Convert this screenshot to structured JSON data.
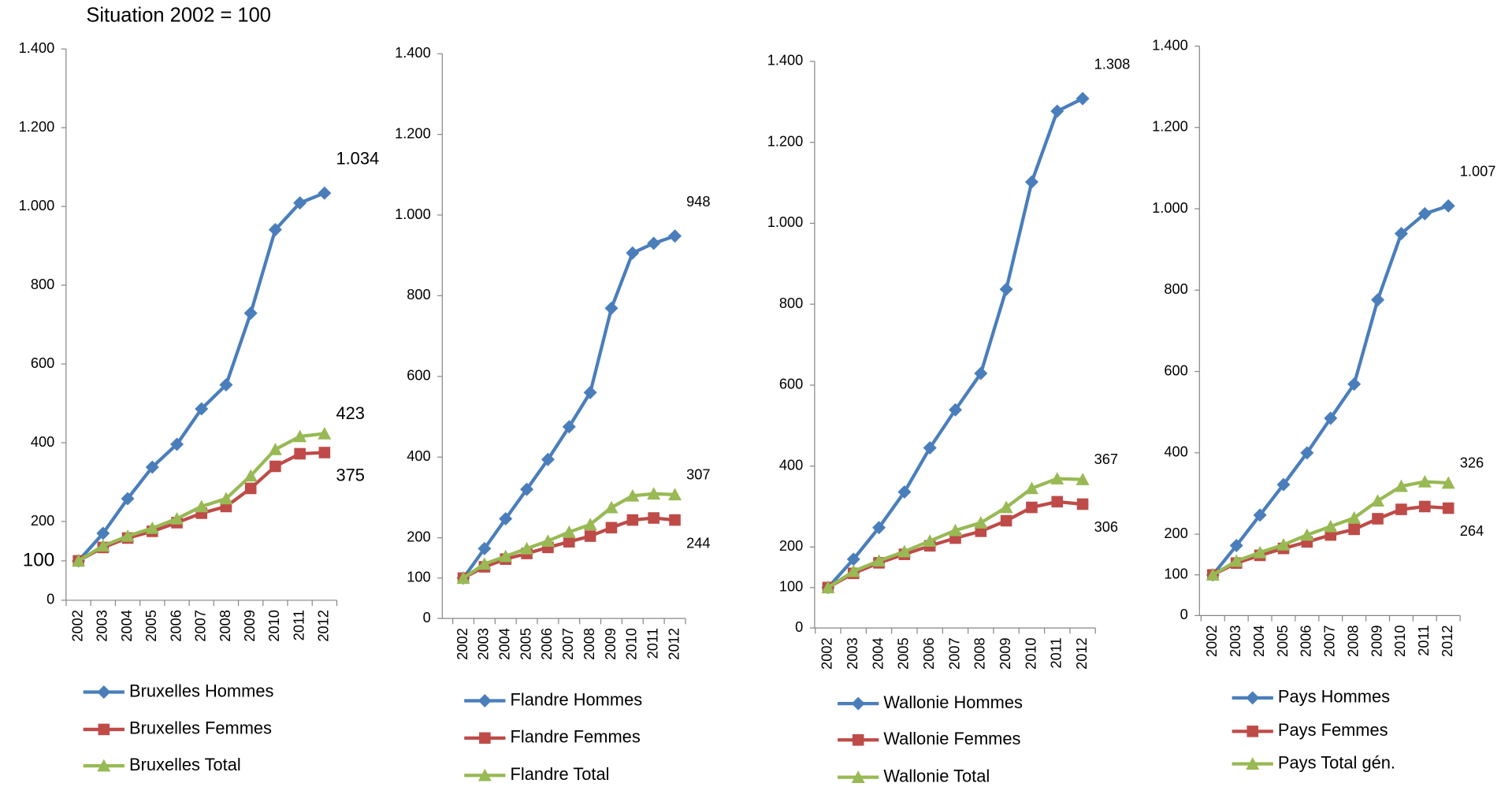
{
  "title": "Situation 2002 = 100",
  "chart_data": [
    {
      "type": "line",
      "categories": [
        "2002",
        "2003",
        "2004",
        "2005",
        "2006",
        "2007",
        "2008",
        "2009",
        "2010",
        "2011",
        "2012"
      ],
      "ylim": [
        0,
        1400
      ],
      "yticks": [
        0,
        100,
        200,
        400,
        600,
        800,
        {
          "value": 1000,
          "label": "1.000"
        },
        {
          "value": 1200,
          "label": "1.200"
        },
        {
          "value": 1400,
          "label": "1.400"
        }
      ],
      "series": [
        {
          "name": "Bruxelles Hommes",
          "color": "#4a7ebb",
          "marker": "diamond",
          "values": [
            100,
            170,
            258,
            338,
            396,
            486,
            547,
            729,
            941,
            1009,
            1034
          ],
          "value_labels": [
            null,
            null,
            null,
            null,
            null,
            null,
            null,
            null,
            null,
            null,
            "1.034"
          ]
        },
        {
          "name": "Bruxelles Femmes",
          "color": "#be4b48",
          "marker": "square",
          "values": [
            100,
            134,
            158,
            175,
            197,
            221,
            238,
            284,
            340,
            372,
            375
          ],
          "value_labels": [
            null,
            null,
            null,
            null,
            null,
            null,
            null,
            null,
            null,
            null,
            "375"
          ]
        },
        {
          "name": "Bruxelles Total",
          "color": "#98b954",
          "marker": "triangle",
          "values": [
            100,
            138,
            163,
            183,
            207,
            238,
            258,
            316,
            383,
            416,
            423
          ],
          "value_labels": [
            null,
            null,
            null,
            null,
            null,
            null,
            null,
            null,
            null,
            null,
            "423"
          ]
        }
      ]
    },
    {
      "type": "line",
      "categories": [
        "2002",
        "2003",
        "2004",
        "2005",
        "2006",
        "2007",
        "2008",
        "2009",
        "2010",
        "2011",
        "2012"
      ],
      "ylim": [
        0,
        1400
      ],
      "yticks": [
        0,
        100,
        200,
        400,
        600,
        800,
        {
          "value": 1000,
          "label": "1.000"
        },
        {
          "value": 1200,
          "label": "1.200"
        },
        {
          "value": 1400,
          "label": "1.400"
        }
      ],
      "series": [
        {
          "name": "Flandre Hommes",
          "color": "#4a7ebb",
          "marker": "diamond",
          "values": [
            100,
            173,
            247,
            320,
            394,
            475,
            560,
            769,
            906,
            930,
            948
          ],
          "value_labels": [
            null,
            null,
            null,
            null,
            null,
            null,
            null,
            null,
            null,
            null,
            "948"
          ]
        },
        {
          "name": "Flandre Femmes",
          "color": "#be4b48",
          "marker": "square",
          "values": [
            100,
            128,
            147,
            161,
            176,
            190,
            204,
            225,
            244,
            249,
            244
          ],
          "value_labels": [
            null,
            null,
            null,
            null,
            null,
            null,
            null,
            null,
            null,
            null,
            "244"
          ]
        },
        {
          "name": "Flandre Total",
          "color": "#98b954",
          "marker": "triangle",
          "values": [
            100,
            135,
            154,
            173,
            192,
            214,
            233,
            275,
            304,
            309,
            307
          ],
          "value_labels": [
            null,
            null,
            null,
            null,
            null,
            null,
            null,
            null,
            null,
            null,
            "307"
          ]
        }
      ]
    },
    {
      "type": "line",
      "categories": [
        "2002",
        "2003",
        "2004",
        "2005",
        "2006",
        "2007",
        "2008",
        "2009",
        "2010",
        "2011",
        "2012"
      ],
      "ylim": [
        0,
        1400
      ],
      "yticks": [
        0,
        100,
        200,
        400,
        600,
        800,
        {
          "value": 1000,
          "label": "1.000"
        },
        {
          "value": 1200,
          "label": "1.200"
        },
        {
          "value": 1400,
          "label": "1.400"
        }
      ],
      "series": [
        {
          "name": "Wallonie Hommes",
          "color": "#4a7ebb",
          "marker": "diamond",
          "values": [
            100,
            170,
            248,
            336,
            445,
            539,
            629,
            837,
            1102,
            1277,
            1308
          ],
          "value_labels": [
            null,
            null,
            null,
            null,
            null,
            null,
            null,
            null,
            null,
            null,
            "1.308"
          ]
        },
        {
          "name": "Wallonie Femmes",
          "color": "#be4b48",
          "marker": "square",
          "values": [
            100,
            135,
            161,
            182,
            203,
            222,
            239,
            265,
            298,
            312,
            306
          ],
          "value_labels": [
            null,
            null,
            null,
            null,
            null,
            null,
            null,
            null,
            null,
            null,
            "306"
          ]
        },
        {
          "name": "Wallonie Total",
          "color": "#98b954",
          "marker": "triangle",
          "values": [
            100,
            140,
            166,
            189,
            215,
            241,
            260,
            298,
            345,
            369,
            367
          ],
          "value_labels": [
            null,
            null,
            null,
            null,
            null,
            null,
            null,
            null,
            null,
            null,
            "367"
          ]
        }
      ]
    },
    {
      "type": "line",
      "categories": [
        "2002",
        "2003",
        "2004",
        "2005",
        "2006",
        "2007",
        "2008",
        "2009",
        "2010",
        "2011",
        "2012"
      ],
      "ylim": [
        0,
        1400
      ],
      "yticks": [
        0,
        100,
        200,
        400,
        600,
        800,
        {
          "value": 1000,
          "label": "1.000"
        },
        {
          "value": 1200,
          "label": "1.200"
        },
        {
          "value": 1400,
          "label": "1.400"
        }
      ],
      "series": [
        {
          "name": "Pays Hommes",
          "color": "#4a7ebb",
          "marker": "diamond",
          "values": [
            100,
            172,
            247,
            322,
            400,
            485,
            569,
            776,
            939,
            988,
            1007
          ],
          "value_labels": [
            null,
            null,
            null,
            null,
            null,
            null,
            null,
            null,
            null,
            null,
            "1.007"
          ]
        },
        {
          "name": "Pays Femmes",
          "color": "#be4b48",
          "marker": "square",
          "values": [
            100,
            129,
            148,
            165,
            181,
            198,
            212,
            238,
            261,
            268,
            264
          ],
          "value_labels": [
            null,
            null,
            null,
            null,
            null,
            null,
            null,
            null,
            null,
            null,
            "264"
          ]
        },
        {
          "name": "Pays Total gén.",
          "color": "#98b954",
          "marker": "triangle",
          "values": [
            100,
            134,
            155,
            174,
            198,
            219,
            240,
            282,
            318,
            329,
            326
          ],
          "value_labels": [
            null,
            null,
            null,
            null,
            null,
            null,
            null,
            null,
            null,
            null,
            "326"
          ]
        }
      ]
    }
  ]
}
